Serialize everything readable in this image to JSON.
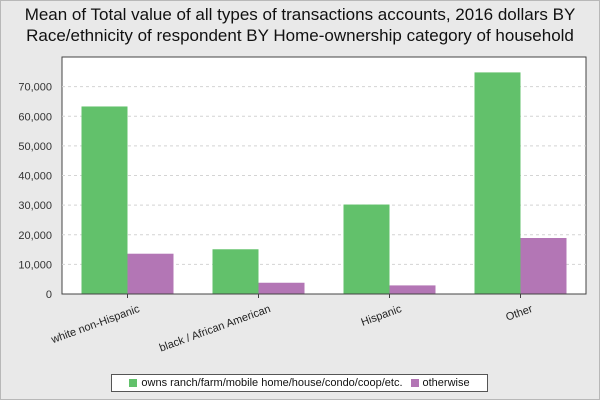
{
  "chart_data": {
    "type": "bar",
    "title_line1": "Mean of Total value of all types of transactions accounts, 2016 dollars BY",
    "title_line2": "Race/ethnicity of respondent BY Home-ownership category of household",
    "categories": [
      "white non-Hispanic",
      "black / African American",
      "Hispanic",
      "Other"
    ],
    "series": [
      {
        "name": "owns ranch/farm/mobile home/house/condo/coop/etc.",
        "color": "#62c16b",
        "values": [
          63300,
          15100,
          30200,
          74800
        ]
      },
      {
        "name": "otherwise",
        "color": "#b376b5",
        "values": [
          13600,
          3800,
          2900,
          18900
        ]
      }
    ],
    "ylim": [
      0,
      80000
    ],
    "yticks": [
      0,
      10000,
      20000,
      30000,
      40000,
      50000,
      60000,
      70000
    ],
    "ytick_labels": [
      "0",
      "10,000",
      "20,000",
      "30,000",
      "40,000",
      "50,000",
      "60,000",
      "70,000"
    ],
    "xlabel": "",
    "ylabel": "",
    "grid": "horizontal dashed",
    "legend_position": "bottom-center"
  }
}
